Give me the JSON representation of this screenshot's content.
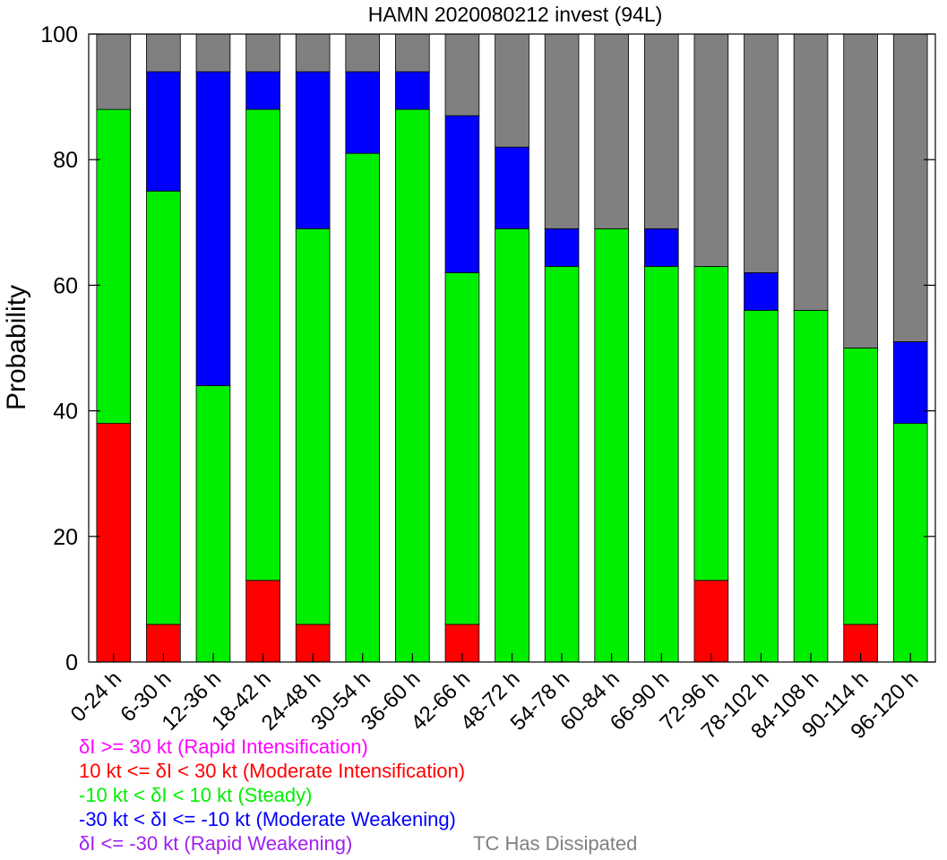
{
  "chart_data": {
    "type": "bar",
    "stacked": true,
    "title": "HAMN 2020080212 invest (94L)",
    "xlabel": "",
    "ylabel": "Probability",
    "ylim": [
      0,
      100
    ],
    "yticks": [
      0,
      20,
      40,
      60,
      80,
      100
    ],
    "categories": [
      "0-24 h",
      "6-30 h",
      "12-36 h",
      "18-42 h",
      "24-48 h",
      "30-54 h",
      "36-60 h",
      "42-66 h",
      "48-72 h",
      "54-78 h",
      "60-84 h",
      "66-90 h",
      "72-96 h",
      "78-102 h",
      "84-108 h",
      "90-114 h",
      "96-120 h"
    ],
    "series": [
      {
        "name": "δI >= 30 kt (Rapid Intensification)",
        "color": "#ff00ff",
        "values": [
          0,
          0,
          0,
          0,
          0,
          0,
          0,
          0,
          0,
          0,
          0,
          0,
          0,
          0,
          0,
          0,
          0
        ]
      },
      {
        "name": "10 kt <= δI < 30 kt (Moderate Intensification)",
        "color": "#ff0000",
        "values": [
          38,
          6,
          0,
          13,
          6,
          0,
          0,
          6,
          0,
          0,
          0,
          0,
          13,
          0,
          0,
          6,
          0
        ]
      },
      {
        "name": "-10 kt < δI < 10 kt (Steady)",
        "color": "#00ee00",
        "values": [
          50,
          69,
          44,
          75,
          63,
          81,
          88,
          56,
          69,
          63,
          69,
          63,
          50,
          56,
          56,
          44,
          38
        ]
      },
      {
        "name": "-30 kt < δI <= -10 kt (Moderate Weakening)",
        "color": "#0000ff",
        "values": [
          0,
          19,
          50,
          6,
          25,
          13,
          6,
          25,
          13,
          6,
          0,
          6,
          0,
          6,
          0,
          0,
          13
        ]
      },
      {
        "name": "δI <= -30 kt (Rapid Weakening)",
        "color": "#a020f0",
        "values": [
          0,
          0,
          0,
          0,
          0,
          0,
          0,
          0,
          0,
          0,
          0,
          0,
          0,
          0,
          0,
          0,
          0
        ]
      },
      {
        "name": "TC Has Dissipated",
        "color": "#808080",
        "values": [
          12,
          6,
          6,
          6,
          6,
          6,
          6,
          13,
          18,
          31,
          31,
          31,
          37,
          38,
          44,
          50,
          49
        ]
      }
    ],
    "grid": false,
    "legend_position": "bottom-left"
  }
}
